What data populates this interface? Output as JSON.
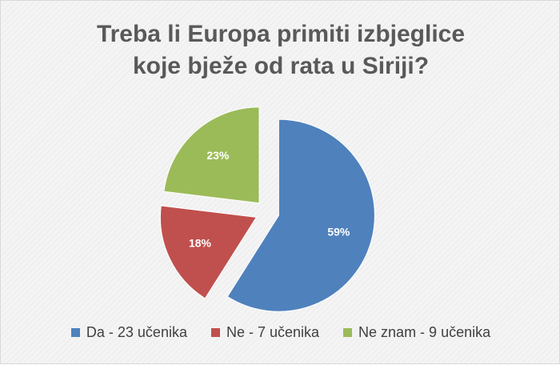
{
  "chart_data": {
    "type": "pie",
    "title_lines": [
      "Treba li Europa primiti izbjeglice",
      "koje bježe od rata u Siriji?"
    ],
    "slices": [
      {
        "legend": "Da - 23 učenika",
        "value": 23,
        "label": "59%",
        "color": "#4f81bd",
        "exploded": true
      },
      {
        "legend": "Ne - 7 učenika",
        "value": 7,
        "label": "18%",
        "color": "#c0504d",
        "exploded": true
      },
      {
        "legend": "Ne znam - 9 učenika",
        "value": 9,
        "label": "23%",
        "color": "#9bbb59",
        "exploded": true
      }
    ],
    "legend_position": "bottom",
    "start_angle_deg": 0,
    "direction": "clockwise"
  }
}
